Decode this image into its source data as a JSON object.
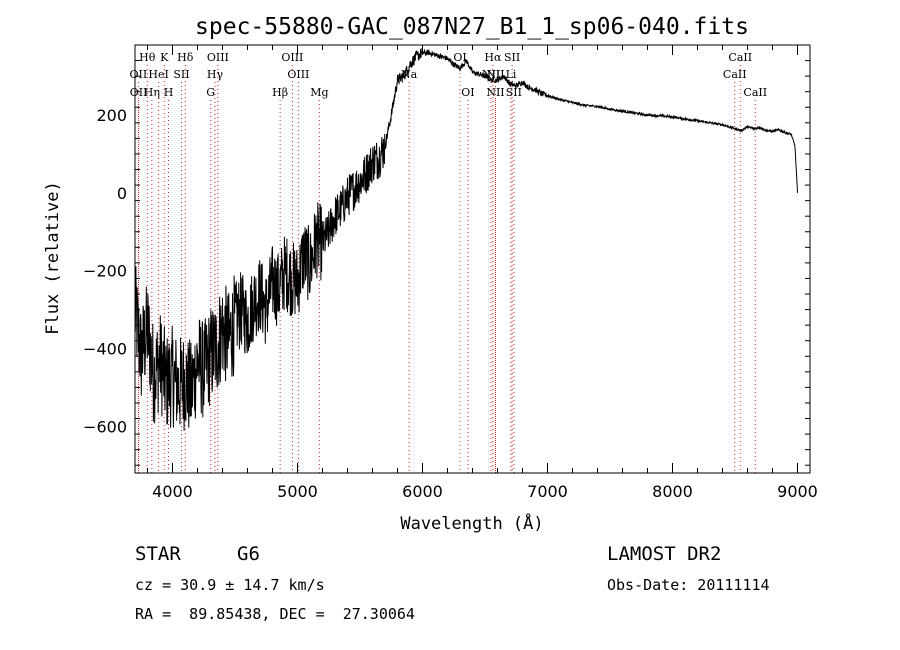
{
  "chart_data": {
    "type": "line",
    "title": "spec-55880-GAC_087N27_B1_1_sp06-040.fits",
    "xlabel": "Wavelength (Å)",
    "ylabel": "Flux (relative)",
    "xlim": [
      3700,
      9100
    ],
    "ylim": [
      -720,
      380
    ],
    "xticks": [
      4000,
      5000,
      6000,
      7000,
      8000,
      9000
    ],
    "yticks": [
      -600,
      -400,
      -200,
      0,
      200
    ],
    "grid": false,
    "series": [
      {
        "color": "#000000",
        "x": [
          3700,
          3750,
          3800,
          3850,
          3900,
          3950,
          4000,
          4050,
          4100,
          4150,
          4200,
          4250,
          4300,
          4350,
          4400,
          4450,
          4500,
          4550,
          4600,
          4650,
          4700,
          4750,
          4800,
          4850,
          4900,
          4950,
          5000,
          5050,
          5100,
          5150,
          5200,
          5250,
          5300,
          5350,
          5400,
          5450,
          5500,
          5550,
          5600,
          5650,
          5700,
          5750,
          5800,
          5850,
          5900,
          5950,
          6000,
          6050,
          6100,
          6150,
          6200,
          6250,
          6300,
          6350,
          6400,
          6450,
          6500,
          6550,
          6600,
          6650,
          6700,
          6750,
          6800,
          6850,
          6900,
          6950,
          7000,
          7100,
          7200,
          7300,
          7400,
          7500,
          7600,
          7700,
          7800,
          7900,
          8000,
          8100,
          8200,
          8300,
          8400,
          8500,
          8550,
          8600,
          8650,
          8700,
          8750,
          8800,
          8850,
          8900,
          8950,
          8980,
          9000
        ],
        "y": [
          -300,
          -420,
          -350,
          -470,
          -430,
          -490,
          -470,
          -500,
          -480,
          -510,
          -430,
          -460,
          -420,
          -400,
          -350,
          -380,
          -330,
          -300,
          -330,
          -280,
          -260,
          -300,
          -230,
          -250,
          -200,
          -220,
          -230,
          -160,
          -190,
          -120,
          -130,
          -100,
          -60,
          -40,
          -10,
          10,
          30,
          50,
          80,
          90,
          120,
          200,
          290,
          300,
          330,
          350,
          360,
          360,
          355,
          350,
          345,
          330,
          320,
          340,
          310,
          305,
          300,
          290,
          290,
          300,
          280,
          275,
          285,
          270,
          265,
          255,
          250,
          240,
          232,
          225,
          222,
          215,
          210,
          205,
          200,
          198,
          195,
          190,
          185,
          180,
          175,
          165,
          160,
          170,
          165,
          168,
          160,
          158,
          162,
          155,
          150,
          120,
          0
        ]
      }
    ],
    "line_markers": [
      {
        "label": "Hθ",
        "x": 3798,
        "row": 0
      },
      {
        "label": "K",
        "x": 3934,
        "row": 0
      },
      {
        "label": "Hδ",
        "x": 4102,
        "row": 0
      },
      {
        "label": "OIII",
        "x": 4363,
        "row": 0
      },
      {
        "label": "OIII",
        "x": 4959,
        "row": 0
      },
      {
        "label": "OI",
        "x": 6300,
        "row": 0
      },
      {
        "label": "Hα",
        "x": 6563,
        "row": 0
      },
      {
        "label": "SII",
        "x": 6717,
        "row": 0
      },
      {
        "label": "CaII",
        "x": 8542,
        "row": 0
      },
      {
        "label": "OII",
        "x": 3727,
        "row": 1
      },
      {
        "label": "HeI",
        "x": 3889,
        "row": 1
      },
      {
        "label": "SII",
        "x": 4072,
        "row": 1
      },
      {
        "label": "Hγ",
        "x": 4340,
        "row": 1
      },
      {
        "label": "OIII",
        "x": 5007,
        "row": 1
      },
      {
        "label": "Na",
        "x": 5893,
        "row": 1
      },
      {
        "label": "NII",
        "x": 6548,
        "row": 1
      },
      {
        "label": "NII",
        "x": 6584,
        "row": 1
      },
      {
        "label": "Li",
        "x": 6708,
        "row": 1
      },
      {
        "label": "CaII",
        "x": 8498,
        "row": 1
      },
      {
        "label": "OII",
        "x": 3729,
        "row": 2
      },
      {
        "label": "Hη",
        "x": 3835,
        "row": 2
      },
      {
        "label": "H",
        "x": 3968,
        "row": 2
      },
      {
        "label": "G",
        "x": 4305,
        "row": 2
      },
      {
        "label": "Hβ",
        "x": 4861,
        "row": 2
      },
      {
        "label": "Mg",
        "x": 5175,
        "row": 2
      },
      {
        "label": "OI",
        "x": 6363,
        "row": 2
      },
      {
        "label": "NII",
        "x": 6584,
        "row": 2
      },
      {
        "label": "SII",
        "x": 6731,
        "row": 2
      },
      {
        "label": "CaII",
        "x": 8662,
        "row": 2
      }
    ]
  },
  "info": {
    "object_type": "STAR",
    "subclass": "G6",
    "survey": "LAMOST DR2",
    "cz": "cz = 30.9 ± 14.7 km/s",
    "obs_date": "Obs-Date: 20111114",
    "coords": "RA =  89.85438, DEC =  27.30064"
  }
}
